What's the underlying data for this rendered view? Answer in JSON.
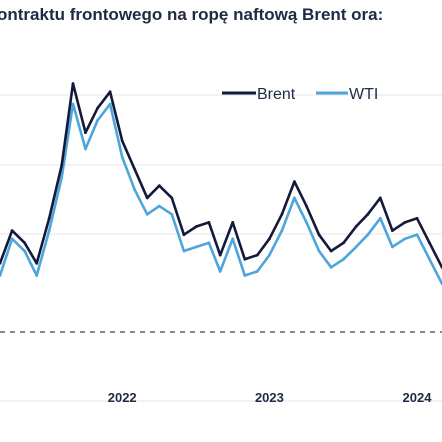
{
  "chart_data": {
    "type": "line",
    "title": "ontraktu frontowego na ropę naftową Brent ora:",
    "xlabel": "",
    "ylabel": "",
    "x_ticks": [
      "2022",
      "2023",
      "2024"
    ],
    "legend": {
      "placement": "top-right",
      "entries": [
        "Brent",
        "WTI"
      ]
    },
    "grid": "horizontal",
    "reference_line": "dashed horizontal baseline",
    "dates": [
      "2021-09",
      "2021-10",
      "2021-11",
      "2021-12",
      "2022-01",
      "2022-02",
      "2022-03",
      "2022-04",
      "2022-05",
      "2022-06",
      "2022-07",
      "2022-08",
      "2022-09",
      "2022-10",
      "2022-11",
      "2022-12",
      "2023-01",
      "2023-02",
      "2023-03",
      "2023-04",
      "2023-05",
      "2023-06",
      "2023-07",
      "2023-08",
      "2023-09",
      "2023-10",
      "2023-11",
      "2023-12",
      "2024-01",
      "2024-02",
      "2024-03",
      "2024-04",
      "2024-05",
      "2024-06",
      "2024-07",
      "2024-08",
      "2024-09"
    ],
    "series": [
      {
        "name": "Brent",
        "color": "#13193a",
        "values": [
          74,
          82,
          79,
          74,
          85,
          98,
          118,
          106,
          112,
          116,
          104,
          97,
          90,
          93,
          90,
          81,
          83,
          84,
          76,
          84,
          75,
          76,
          80,
          86,
          94,
          88,
          81,
          77,
          79,
          83,
          86,
          90,
          82,
          84,
          85,
          79,
          73
        ]
      },
      {
        "name": "WTI",
        "color": "#4ea5dc",
        "values": [
          71,
          80,
          77,
          71,
          82,
          95,
          113,
          102,
          109,
          113,
          100,
          92,
          86,
          88,
          86,
          77,
          78,
          79,
          72,
          80,
          71,
          72,
          76,
          82,
          90,
          84,
          77,
          73,
          75,
          78,
          81,
          85,
          78,
          80,
          81,
          75,
          69
        ]
      }
    ]
  }
}
